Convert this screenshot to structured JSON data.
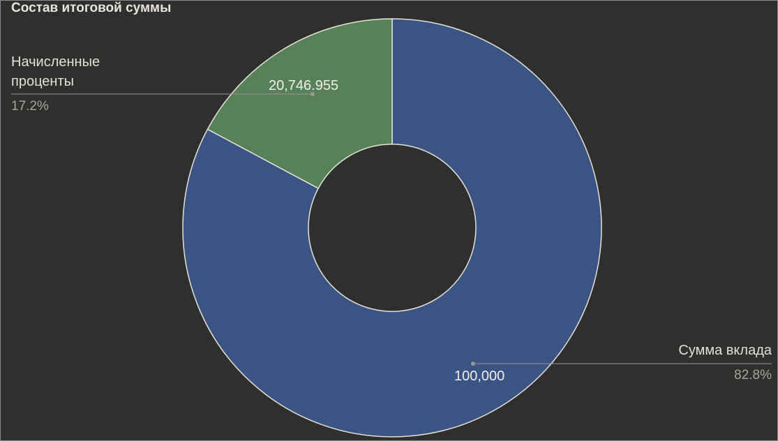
{
  "chart_data": {
    "type": "pie",
    "donut": true,
    "title": "Состав итоговой суммы",
    "slices": [
      {
        "label": "Сумма вклада",
        "value": 100000,
        "value_label": "100,000",
        "percent_label": "82.8%",
        "color": "#3a5484"
      },
      {
        "label": "Начисленные проценты",
        "value": 20746.955,
        "value_label": "20,746.955",
        "percent_label": "17.2%",
        "color": "#578259"
      }
    ],
    "legend": "none",
    "colors": {
      "background": "#2f2f2d",
      "border": "#e6e2d8",
      "text": "#e3dfd6",
      "muted_text": "#a9a49a"
    }
  }
}
